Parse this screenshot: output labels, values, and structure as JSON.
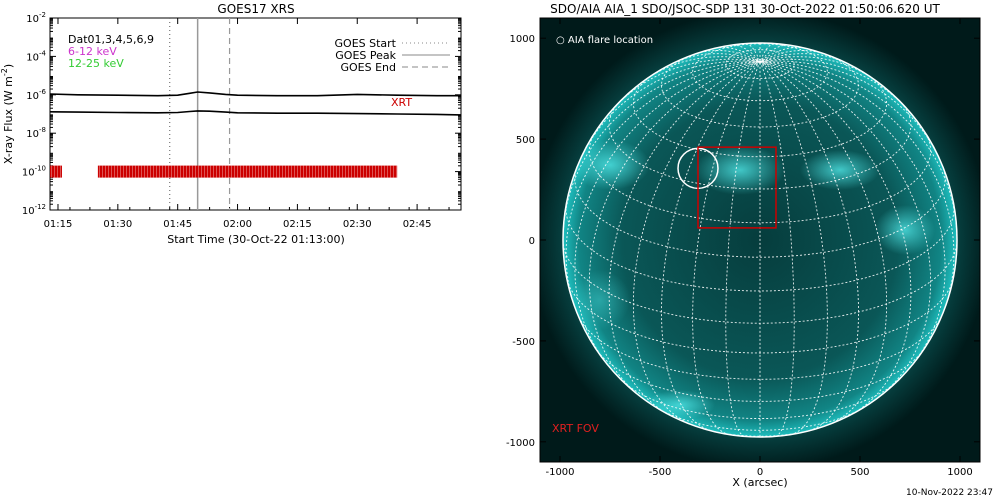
{
  "chart_data": [
    {
      "type": "line",
      "title": "GOES17 XRS",
      "xlabel": "Start Time (30-Oct-22 01:13:00)",
      "ylabel": "X-ray Flux (W m",
      "ylabel_sup": "-2",
      "ylabel_close": ")",
      "y_scale": "log",
      "ylim": [
        1e-12,
        0.01
      ],
      "y_ticks": [
        {
          "value": 0.01,
          "base": "10",
          "exp": "-2"
        },
        {
          "value": 0.0001,
          "base": "10",
          "exp": "-4"
        },
        {
          "value": 1e-06,
          "base": "10",
          "exp": "-6"
        },
        {
          "value": 1e-08,
          "base": "10",
          "exp": "-8"
        },
        {
          "value": 1e-10,
          "base": "10",
          "exp": "-10"
        },
        {
          "value": 1e-12,
          "base": "10",
          "exp": "-12"
        }
      ],
      "xlim": [
        "01:13",
        "02:56"
      ],
      "x_ticks": [
        "01:15",
        "01:30",
        "01:45",
        "02:00",
        "02:15",
        "02:30",
        "02:45"
      ],
      "grid": false,
      "legend": {
        "placement": "top-right",
        "items": [
          {
            "label": "GOES Start",
            "style": "dotted"
          },
          {
            "label": "GOES Peak",
            "style": "solid"
          },
          {
            "label": "GOES End",
            "style": "dashed"
          }
        ]
      },
      "info_labels": [
        {
          "text": "Dat01,3,4,5,6,9",
          "color": "#000000"
        },
        {
          "text": "6-12 keV",
          "color": "#cc33cc"
        },
        {
          "text": "12-25 keV",
          "color": "#33cc33"
        }
      ],
      "events": {
        "start": "01:43",
        "peak": "01:50",
        "end": "01:58"
      },
      "series": [
        {
          "id": "long",
          "color": "#000000",
          "x": [
            "01:13",
            "01:20",
            "01:30",
            "01:40",
            "01:45",
            "01:48",
            "01:50",
            "01:53",
            "01:57",
            "02:00",
            "02:10",
            "02:20",
            "02:30",
            "02:40",
            "02:50",
            "02:56"
          ],
          "y": [
            1.1e-06,
            1e-06,
            9.5e-07,
            9e-07,
            9.5e-07,
            1.2e-06,
            1.4e-06,
            1.25e-06,
            1.05e-06,
            9.5e-07,
            9e-07,
            9e-07,
            1.05e-06,
            9.5e-07,
            9e-07,
            9e-07
          ]
        },
        {
          "id": "short",
          "color": "#000000",
          "x": [
            "01:13",
            "01:20",
            "01:30",
            "01:40",
            "01:45",
            "01:48",
            "01:50",
            "01:53",
            "01:57",
            "02:00",
            "02:10",
            "02:20",
            "02:30",
            "02:40",
            "02:50",
            "02:56"
          ],
          "y": [
            1.3e-07,
            1.25e-07,
            1.2e-07,
            1.15e-07,
            1.2e-07,
            1.35e-07,
            1.45e-07,
            1.4e-07,
            1.25e-07,
            1.15e-07,
            1.1e-07,
            1.1e-07,
            1.05e-07,
            1e-07,
            9.5e-08,
            9e-08
          ]
        }
      ],
      "xrt_label": "XRT",
      "xrt_color": "#cc0000",
      "xrt_level": 1e-10,
      "xrt_intervals": [
        [
          "01:13",
          "01:16"
        ],
        [
          "01:25",
          "02:40"
        ]
      ]
    },
    {
      "type": "image",
      "title": "SDO/AIA AIA_1 SDO/JSOC-SDP 131 30-Oct-2022 01:50:06.620 UT",
      "xlabel": "X (arcsec)",
      "xlim": [
        -1100,
        1100
      ],
      "ylim": [
        -1100,
        1100
      ],
      "x_ticks": [
        -1000,
        -500,
        0,
        500,
        1000
      ],
      "y_ticks": [
        -1000,
        -500,
        0,
        500,
        1000
      ],
      "solar_radius_arcsec": 985,
      "grid_spacing_deg": 10,
      "flare_location": {
        "label": "AIA flare location",
        "x": -310,
        "y": 355,
        "r": 100
      },
      "xrt_fov": {
        "label": "XRT FOV",
        "color": "#cc0000",
        "x": [
          -310,
          80
        ],
        "y": [
          60,
          460
        ]
      }
    }
  ],
  "footer": {
    "timestamp": "10-Nov-2022 23:47"
  }
}
